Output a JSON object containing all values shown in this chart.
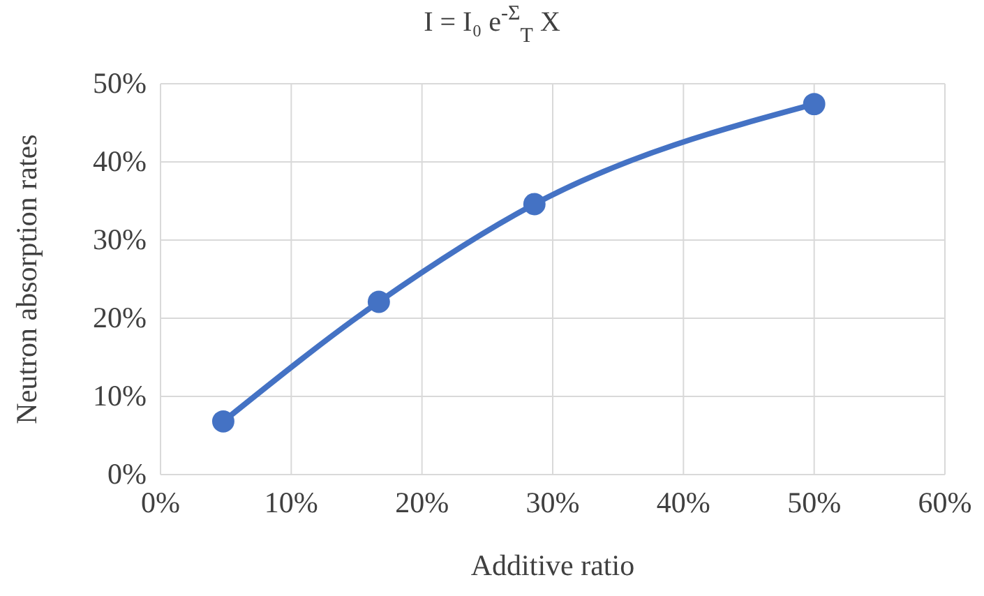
{
  "chart_data": {
    "type": "line",
    "title": "I = I₀ e$^{-Σ}$$_{T}$ X",
    "xlabel": "Additive ratio",
    "ylabel": "Neutron absorption rates",
    "x": [
      4.8,
      16.7,
      28.6,
      50
    ],
    "series": [
      {
        "color": "#4472c4",
        "values": [
          6.8,
          22.1,
          34.6,
          47.4
        ]
      }
    ],
    "xlim": [
      0,
      60
    ],
    "xticks": [
      {
        "value": 0,
        "label": "0%"
      },
      {
        "value": 10,
        "label": "10%"
      },
      {
        "value": 20,
        "label": "20%"
      },
      {
        "value": 30,
        "label": "30%"
      },
      {
        "value": 40,
        "label": "40%"
      },
      {
        "value": 50,
        "label": "50%"
      },
      {
        "value": 60,
        "label": "60%"
      }
    ],
    "ylim": [
      0,
      50
    ],
    "yticks": [
      {
        "value": 0,
        "label": "0%"
      },
      {
        "value": 10,
        "label": "10%"
      },
      {
        "value": 20,
        "label": "20%"
      },
      {
        "value": 30,
        "label": "30%"
      },
      {
        "value": 40,
        "label": "40%"
      },
      {
        "value": 50,
        "label": "50%"
      }
    ],
    "grid": true,
    "marker": "circle",
    "line_style": "solid"
  }
}
